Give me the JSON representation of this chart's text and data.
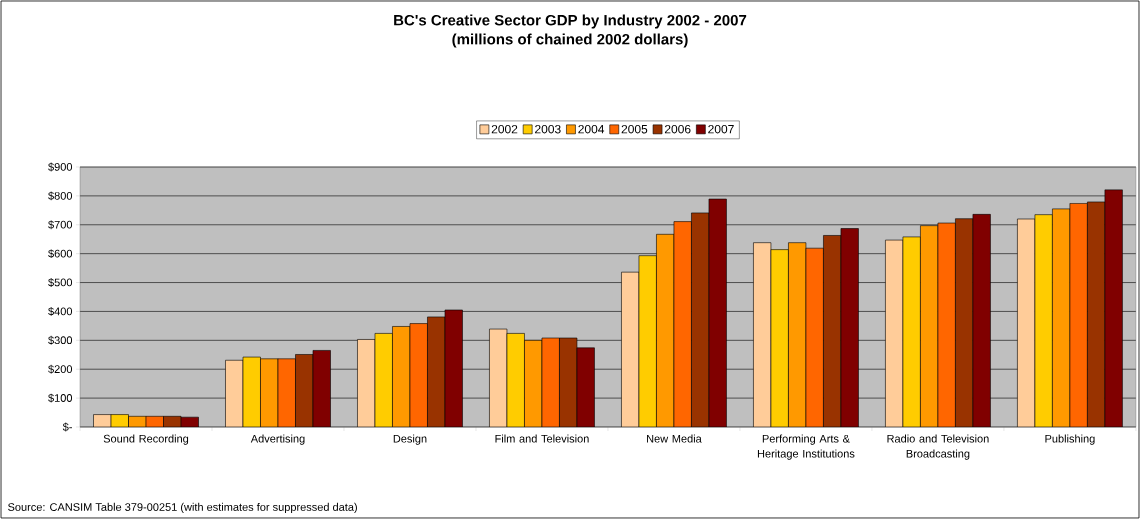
{
  "chart_data": {
    "type": "bar",
    "title": "BC's Creative Sector GDP by Industry 2002 - 2007",
    "subtitle": "(millions of chained 2002 dollars)",
    "categories": [
      "Sound Recording",
      "Advertising",
      "Design",
      "Film and Television",
      "New Media",
      "Performing Arts & Heritage Institutions",
      "Radio and Television Broadcasting",
      "Publishing"
    ],
    "series": [
      {
        "name": "2002",
        "color": "#ffcc99",
        "values": [
          43,
          231,
          303,
          339,
          536,
          638,
          647,
          720
        ]
      },
      {
        "name": "2003",
        "color": "#ffcc00",
        "values": [
          43,
          242,
          324,
          324,
          593,
          614,
          658,
          735
        ]
      },
      {
        "name": "2004",
        "color": "#ff9900",
        "values": [
          37,
          236,
          348,
          300,
          667,
          638,
          697,
          755
        ]
      },
      {
        "name": "2005",
        "color": "#ff6600",
        "values": [
          37,
          236,
          358,
          308,
          711,
          619,
          706,
          774
        ]
      },
      {
        "name": "2006",
        "color": "#993300",
        "values": [
          37,
          251,
          381,
          308,
          741,
          663,
          721,
          779
        ]
      },
      {
        "name": "2007",
        "color": "#800000",
        "values": [
          34,
          265,
          405,
          274,
          789,
          687,
          736,
          821
        ]
      }
    ],
    "ylim": [
      0,
      900
    ],
    "yticks": [
      {
        "value": 0,
        "label": "$-"
      },
      {
        "value": 100,
        "label": "$100"
      },
      {
        "value": 200,
        "label": "$200"
      },
      {
        "value": 300,
        "label": "$300"
      },
      {
        "value": 400,
        "label": "$400"
      },
      {
        "value": 500,
        "label": "$500"
      },
      {
        "value": 600,
        "label": "$600"
      },
      {
        "value": 700,
        "label": "$700"
      },
      {
        "value": 800,
        "label": "$800"
      },
      {
        "value": 900,
        "label": "$900"
      }
    ],
    "grid": "y",
    "legend": "top",
    "annotations": [
      "Source: CANSIM Table 379-00251  (with estimates for suppressed data)"
    ]
  }
}
